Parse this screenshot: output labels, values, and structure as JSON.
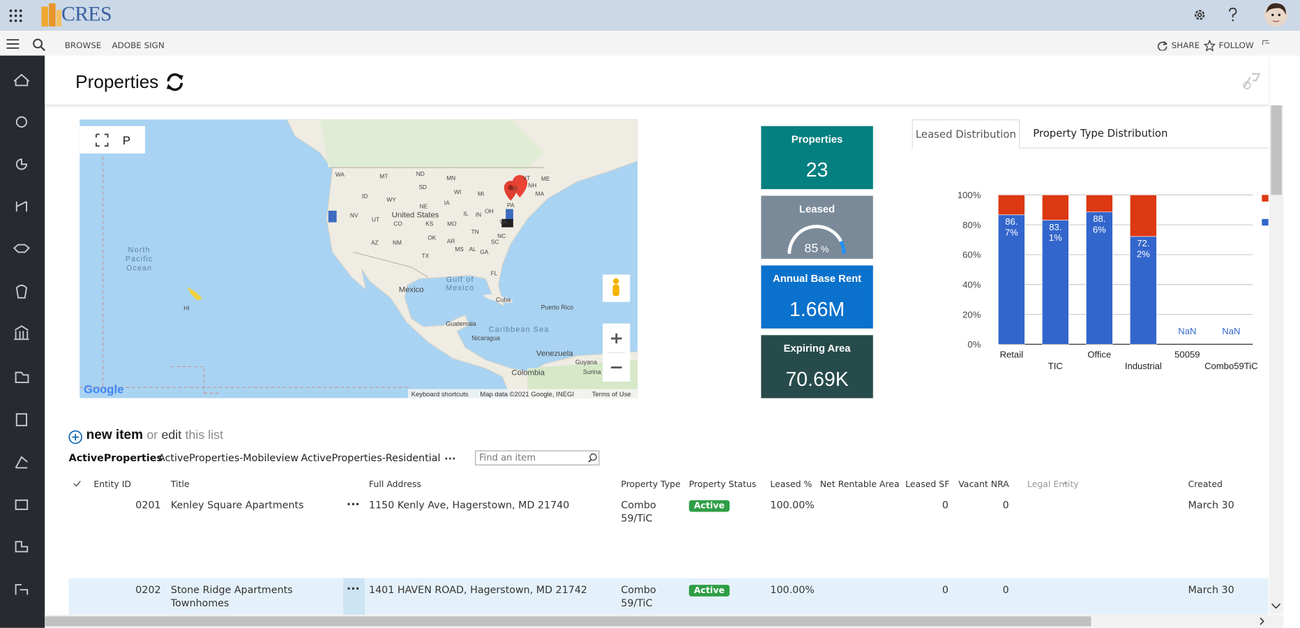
{
  "app": {
    "logo": "CRES"
  },
  "command_bar": {
    "items": [
      "BROWSE",
      "ADOBE SIGN"
    ],
    "share": "SHARE",
    "follow": "FOLLOW"
  },
  "page": {
    "title": "Properties"
  },
  "map": {
    "fullscreen_label": "P",
    "labels": [
      "United States",
      "Mexico",
      "North Pacific Ocean",
      "Gulf of Mexico",
      "Cuba",
      "Puerto Rico",
      "Guatemala",
      "Nicaragua",
      "Caribbean Sea",
      "Venezuela",
      "Colombia",
      "Guyana",
      "Surina",
      "HI",
      "WA",
      "MT",
      "ND",
      "MN",
      "ID",
      "SD",
      "WY",
      "NE",
      "IA",
      "NV",
      "UT",
      "CO",
      "KS",
      "MO",
      "IL",
      "IN",
      "OH",
      "MI",
      "WI",
      "NY",
      "PA",
      "VA",
      "NC",
      "SC",
      "TN",
      "GA",
      "AL",
      "MS",
      "AR",
      "OK",
      "TX",
      "AZ",
      "NM",
      "FL",
      "VT",
      "NH",
      "ME",
      "MA"
    ],
    "logo": "Google",
    "keyboard": "Keyboard shortcuts",
    "attribution": "Map data ©2021 Google, INEGI",
    "terms": "Terms of Use"
  },
  "kpis": [
    {
      "label": "Properties",
      "value": "23"
    },
    {
      "label": "Leased",
      "value": 85,
      "unit": "%"
    },
    {
      "label": "Annual Base Rent",
      "value": "1.66M"
    },
    {
      "label": "Expiring Area",
      "value": "70.69K"
    }
  ],
  "chart_tabs": [
    "Leased Distribution",
    "Property Type Distribution"
  ],
  "chart_data": {
    "type": "bar",
    "stacked": true,
    "categories": [
      "Retail",
      "TIC",
      "Office",
      "Industrial",
      "50059",
      "Combo59TiC"
    ],
    "series": [
      {
        "color": "#3366cc",
        "values": [
          86.7,
          83.1,
          88.6,
          72.2,
          null,
          null
        ],
        "value_labels": [
          "86.7%",
          "83.1%",
          "88.6%",
          "72.2%",
          "NaN",
          "NaN"
        ]
      },
      {
        "color": "#dc3912",
        "values": [
          13.3,
          16.9,
          11.4,
          27.8,
          null,
          null
        ]
      }
    ],
    "ylim": [
      0,
      100
    ],
    "yticks": [
      {
        "value": 0,
        "label": "0%"
      },
      {
        "value": 20,
        "label": "20%"
      },
      {
        "value": 40,
        "label": "40%"
      },
      {
        "value": 60,
        "label": "60%"
      },
      {
        "value": 80,
        "label": "80%"
      },
      {
        "value": 100,
        "label": "100%"
      }
    ],
    "grid": true
  },
  "list": {
    "new_item": "new item",
    "or": "or",
    "edit": "edit",
    "this_list": "this list",
    "views": [
      "ActiveProperties",
      "ActiveProperties-Mobileview",
      "ActiveProperties-Residential"
    ],
    "more": "...",
    "search_placeholder": "Find an item",
    "columns": [
      "Entity ID",
      "Title",
      "Full Address",
      "Property Type",
      "Property Status",
      "Leased %",
      "Net Rentable Area",
      "Leased SF",
      "Vacant NRA",
      "Legal Entity",
      "Created"
    ],
    "rows": [
      {
        "entity_id": "0201",
        "title": "Kenley Square Apartments",
        "address": "1150 Kenly Ave, Hagerstown, MD 21740",
        "property_type": "Combo 59/TiC",
        "status": "Active",
        "leased_pct": "100.00%",
        "leased_sf": 0,
        "vacant_nra": 0,
        "created": "March 30"
      },
      {
        "entity_id": "0202",
        "title": "Stone Ridge Apartments Townhomes",
        "address": "1401 HAVEN ROAD, Hagerstown, MD 21742",
        "property_type": "Combo 59/TiC",
        "status": "Active",
        "leased_pct": "100.00%",
        "leased_sf": 0,
        "vacant_nra": 0,
        "created": "March 30"
      }
    ]
  }
}
